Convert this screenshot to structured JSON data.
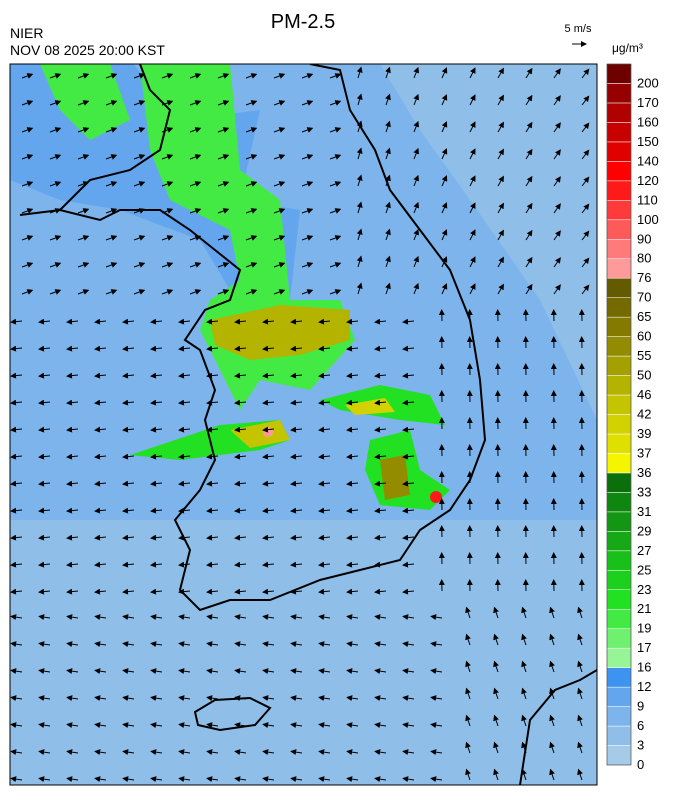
{
  "header": {
    "title": "PM-2.5",
    "agency": "NIER",
    "datetime": "NOV 08 2025 20:00 KST",
    "wind_scale": "5 m/s",
    "unit": "μg/m³"
  },
  "colorbar": {
    "labels": [
      0,
      3,
      6,
      9,
      12,
      16,
      17,
      19,
      21,
      23,
      25,
      27,
      29,
      31,
      33,
      36,
      37,
      39,
      42,
      46,
      50,
      55,
      60,
      65,
      70,
      76,
      80,
      90,
      100,
      110,
      120,
      140,
      150,
      160,
      170,
      200
    ],
    "colors": [
      "#a6cbe8",
      "#8fbfe8",
      "#7db4ec",
      "#64a6ee",
      "#3d94f0",
      "#96f596",
      "#6ff06f",
      "#44ea44",
      "#22e022",
      "#1ed01e",
      "#1ac01a",
      "#16a816",
      "#139613",
      "#0f860f",
      "#0b700b",
      "#f5f500",
      "#e0e000",
      "#d2d200",
      "#c4c400",
      "#b4b400",
      "#a4a000",
      "#948c00",
      "#847a00",
      "#746a00",
      "#645a00",
      "#ff9a9a",
      "#ff7a7a",
      "#ff5a5a",
      "#ff3a3a",
      "#ff1a1a",
      "#ff0000",
      "#e00000",
      "#c80000",
      "#b00000",
      "#960000",
      "#6e0000"
    ]
  }
}
